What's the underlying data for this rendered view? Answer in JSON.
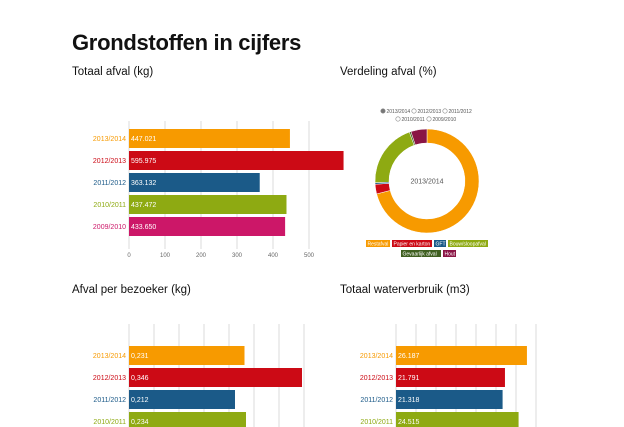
{
  "page": {
    "title": "Grondstoffen in cijfers"
  },
  "colors": {
    "2013/2014": "#f79a00",
    "2012/2013": "#cc0a15",
    "2011/2012": "#1b5a88",
    "2010/2011": "#8eaa12",
    "2009/2010": "#cc1768",
    "grid": "#cccccc"
  },
  "chart_data": [
    {
      "id": "totaal-afval",
      "type": "bar",
      "orientation": "horizontal",
      "title": "Totaal afval (kg)",
      "categories": [
        "2013/2014",
        "2012/2013",
        "2011/2012",
        "2010/2011",
        "2009/2010"
      ],
      "values": [
        447021,
        595975,
        363132,
        437472,
        433650
      ],
      "value_labels": [
        "447.021",
        "595.975",
        "363.132",
        "437.472",
        "433.650"
      ],
      "ticks": [
        0,
        100,
        200,
        300,
        400,
        500
      ],
      "tick_labels": [
        "0",
        "100",
        "200",
        "300",
        "400",
        "500"
      ],
      "xlim": [
        0,
        600000
      ],
      "grid": true
    },
    {
      "id": "verdeling-afval",
      "type": "pie",
      "donut": true,
      "title": "Verdeling afval (%)",
      "center_label": "2013/2014",
      "year_options": [
        "2013/2014",
        "2012/2013",
        "2011/2012",
        "2010/2011",
        "2009/2010"
      ],
      "selected_year": "2013/2014",
      "slices": [
        {
          "label": "Restafval",
          "value": 71,
          "color": "#f79a00"
        },
        {
          "label": "Papier en karton",
          "value": 3,
          "color": "#cc0a15"
        },
        {
          "label": "GFT",
          "value": 0.5,
          "color": "#1b5a88"
        },
        {
          "label": "Bouw/sloopafval",
          "value": 20,
          "color": "#8eaa12"
        },
        {
          "label": "Gevaarlijk afval",
          "value": 0.5,
          "color": "#3f5f20"
        },
        {
          "label": "Hout",
          "value": 5,
          "color": "#8a1545"
        }
      ]
    },
    {
      "id": "afval-per-bezoeker",
      "type": "bar",
      "orientation": "horizontal",
      "title": "Afval per bezoeker (kg)",
      "categories": [
        "2013/2014",
        "2012/2013",
        "2011/2012",
        "2010/2011"
      ],
      "values": [
        0.231,
        0.346,
        0.212,
        0.234
      ],
      "value_labels": [
        "0,231",
        "0,346",
        "0,212",
        "0,234"
      ],
      "xlim": [
        0,
        0.35
      ],
      "grid": true
    },
    {
      "id": "totaal-waterverbruik",
      "type": "bar",
      "orientation": "horizontal",
      "title": "Totaal waterverbruik (m3)",
      "categories": [
        "2013/2014",
        "2012/2013",
        "2011/2012",
        "2010/2011"
      ],
      "values": [
        26187,
        21791,
        21318,
        24515
      ],
      "value_labels": [
        "26.187",
        "21.791",
        "21.318",
        "24.515"
      ],
      "xlim": [
        0,
        28000
      ],
      "grid": true
    }
  ]
}
